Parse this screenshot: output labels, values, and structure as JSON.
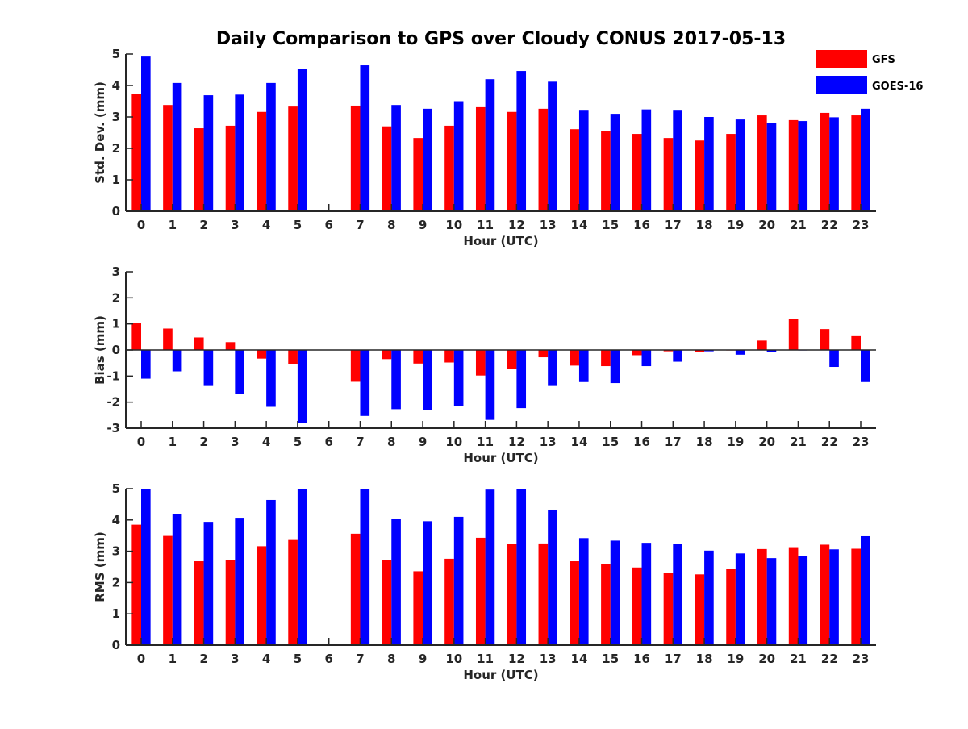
{
  "figure": {
    "title": "Daily Comparison to GPS over Cloudy CONUS 2017-05-13",
    "legend": [
      {
        "label": "GFS",
        "color": "#ff0000"
      },
      {
        "label": "GOES-16",
        "color": "#0000ff"
      }
    ]
  },
  "chart_data": [
    {
      "type": "bar",
      "title": "Daily Comparison to GPS over Cloudy CONUS 2017-05-13",
      "xlabel": "Hour (UTC)",
      "ylabel": "Std. Dev. (mm)",
      "ylim": [
        0,
        5
      ],
      "yticks": [
        0,
        1,
        2,
        3,
        4,
        5
      ],
      "categories": [
        "0",
        "1",
        "2",
        "3",
        "4",
        "5",
        "6",
        "7",
        "8",
        "9",
        "10",
        "11",
        "12",
        "13",
        "14",
        "15",
        "16",
        "17",
        "18",
        "19",
        "20",
        "21",
        "22",
        "23"
      ],
      "series": [
        {
          "name": "GFS",
          "color": "#ff0000",
          "values": [
            3.72,
            3.38,
            2.64,
            2.72,
            3.16,
            3.33,
            null,
            3.36,
            2.7,
            2.33,
            2.72,
            3.31,
            3.16,
            3.26,
            2.61,
            2.55,
            2.46,
            2.33,
            2.25,
            2.46,
            3.05,
            2.9,
            3.13,
            3.05
          ]
        },
        {
          "name": "GOES-16",
          "color": "#0000ff",
          "values": [
            4.92,
            4.08,
            3.69,
            3.71,
            4.08,
            4.52,
            null,
            4.64,
            3.38,
            3.26,
            3.5,
            4.2,
            4.46,
            4.12,
            3.2,
            3.1,
            3.24,
            3.2,
            3.0,
            2.92,
            2.8,
            2.87,
            2.99,
            3.26
          ]
        }
      ]
    },
    {
      "type": "bar",
      "xlabel": "Hour (UTC)",
      "ylabel": "Bias (mm)",
      "ylim": [
        -3,
        3
      ],
      "yticks": [
        -3,
        -2,
        -1,
        0,
        1,
        2,
        3
      ],
      "categories": [
        "0",
        "1",
        "2",
        "3",
        "4",
        "5",
        "6",
        "7",
        "8",
        "9",
        "10",
        "11",
        "12",
        "13",
        "14",
        "15",
        "16",
        "17",
        "18",
        "19",
        "20",
        "21",
        "22",
        "23"
      ],
      "series": [
        {
          "name": "GFS",
          "color": "#ff0000",
          "values": [
            1.02,
            0.82,
            0.48,
            0.3,
            -0.33,
            -0.55,
            null,
            -1.22,
            -0.35,
            -0.52,
            -0.48,
            -0.98,
            -0.73,
            -0.28,
            -0.6,
            -0.62,
            -0.2,
            -0.05,
            -0.08,
            0.0,
            0.36,
            1.2,
            0.8,
            0.53
          ]
        },
        {
          "name": "GOES-16",
          "color": "#0000ff",
          "values": [
            -1.1,
            -0.82,
            -1.38,
            -1.7,
            -2.18,
            -2.8,
            null,
            -2.53,
            -2.27,
            -2.3,
            -2.15,
            -2.68,
            -2.23,
            -1.38,
            -1.23,
            -1.27,
            -0.62,
            -0.45,
            -0.05,
            -0.18,
            -0.08,
            0.0,
            -0.65,
            -1.23
          ]
        }
      ]
    },
    {
      "type": "bar",
      "xlabel": "Hour (UTC)",
      "ylabel": "RMS (mm)",
      "ylim": [
        0,
        5
      ],
      "yticks": [
        0,
        1,
        2,
        3,
        4,
        5
      ],
      "categories": [
        "0",
        "1",
        "2",
        "3",
        "4",
        "5",
        "6",
        "7",
        "8",
        "9",
        "10",
        "11",
        "12",
        "13",
        "14",
        "15",
        "16",
        "17",
        "18",
        "19",
        "20",
        "21",
        "22",
        "23"
      ],
      "series": [
        {
          "name": "GFS",
          "color": "#ff0000",
          "values": [
            3.85,
            3.49,
            2.68,
            2.73,
            3.16,
            3.36,
            null,
            3.56,
            2.72,
            2.36,
            2.76,
            3.43,
            3.23,
            3.25,
            2.68,
            2.6,
            2.48,
            2.31,
            2.26,
            2.44,
            3.07,
            3.13,
            3.21,
            3.08
          ]
        },
        {
          "name": "GOES-16",
          "color": "#0000ff",
          "values": [
            5.0,
            4.18,
            3.94,
            4.07,
            4.64,
            5.0,
            null,
            5.0,
            4.04,
            3.96,
            4.1,
            4.97,
            5.0,
            4.33,
            3.42,
            3.34,
            3.27,
            3.23,
            3.02,
            2.93,
            2.78,
            2.86,
            3.06,
            3.48
          ]
        }
      ]
    }
  ]
}
